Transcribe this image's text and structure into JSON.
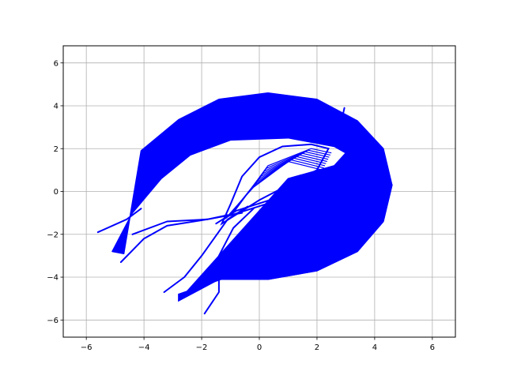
{
  "chart_data": {
    "type": "line",
    "title": "",
    "xlabel": "",
    "ylabel": "",
    "xlim": [
      -6.8,
      6.8
    ],
    "ylim": [
      -6.8,
      6.8
    ],
    "x_ticks": [
      -6,
      -4,
      -2,
      0,
      2,
      4,
      6
    ],
    "y_ticks": [
      -6,
      -4,
      -2,
      0,
      2,
      4,
      6
    ],
    "x_tick_labels": [
      "−6",
      "−4",
      "−2",
      "0",
      "2",
      "4",
      "6"
    ],
    "y_tick_labels": [
      "−6",
      "−4",
      "−2",
      "0",
      "2",
      "4",
      "6"
    ],
    "grid": true,
    "series_color": "#0000ff",
    "band_outer_boundary": [
      [
        -4.7,
        -2.9
      ],
      [
        -4.1,
        1.9
      ],
      [
        -2.8,
        3.35
      ],
      [
        -1.4,
        4.3
      ],
      [
        0.3,
        4.6
      ],
      [
        2.0,
        4.3
      ],
      [
        3.4,
        3.3
      ],
      [
        4.3,
        2.0
      ],
      [
        4.6,
        0.3
      ],
      [
        4.3,
        -1.4
      ],
      [
        3.4,
        -2.8
      ],
      [
        2.0,
        -3.7
      ],
      [
        0.3,
        -4.1
      ],
      [
        -1.4,
        -4.1
      ],
      [
        -2.8,
        -5.1
      ]
    ],
    "band_inner_boundary": [
      [
        -5.1,
        -2.8
      ],
      [
        -4.4,
        -1.0
      ],
      [
        -3.4,
        0.6
      ],
      [
        -2.4,
        1.7
      ],
      [
        -1.0,
        2.4
      ],
      [
        1.0,
        2.5
      ],
      [
        2.6,
        2.1
      ],
      [
        3.0,
        1.8
      ],
      [
        2.6,
        1.2
      ],
      [
        1.8,
        0.9
      ],
      [
        1.0,
        0.6
      ]
    ],
    "lower_arc_inner": [
      [
        1.9,
        0.2
      ],
      [
        3.2,
        0.1
      ],
      [
        2.8,
        -0.9
      ],
      [
        2.3,
        -1.0
      ],
      [
        1.9,
        -2.4
      ],
      [
        0.6,
        -3.3
      ],
      [
        -0.9,
        -3.9
      ],
      [
        -2.8,
        -4.8
      ]
    ],
    "inner_lobe": [
      [
        -1.3,
        -1.5
      ],
      [
        -1.0,
        -0.6
      ],
      [
        -0.6,
        0.7
      ],
      [
        0.0,
        1.6
      ],
      [
        0.8,
        2.1
      ],
      [
        1.8,
        2.2
      ],
      [
        2.4,
        2.0
      ],
      [
        2.0,
        1.0
      ],
      [
        1.0,
        0.3
      ],
      [
        0.0,
        -0.4
      ],
      [
        -1.3,
        -1.5
      ]
    ],
    "tail_lines": [
      [
        [
          -5.6,
          -1.9
        ],
        [
          -4.6,
          -1.3
        ],
        [
          -4.1,
          -0.8
        ]
      ],
      [
        [
          -4.8,
          -3.3
        ],
        [
          -4.0,
          -2.2
        ],
        [
          -3.2,
          -1.6
        ],
        [
          -1.8,
          -1.3
        ],
        [
          -1.1,
          -1.1
        ]
      ],
      [
        [
          -4.4,
          -2.0
        ],
        [
          -3.2,
          -1.4
        ],
        [
          -1.8,
          -1.3
        ],
        [
          -0.6,
          -1.0
        ]
      ],
      [
        [
          -3.3,
          -4.7
        ],
        [
          -2.6,
          -4.0
        ],
        [
          -2.0,
          -3.0
        ],
        [
          -1.1,
          -1.3
        ],
        [
          -0.4,
          -0.7
        ]
      ],
      [
        [
          -1.9,
          -5.7
        ],
        [
          -1.4,
          -4.7
        ],
        [
          -1.4,
          -3.0
        ],
        [
          -0.9,
          -1.7
        ],
        [
          -0.2,
          -0.8
        ]
      ],
      [
        [
          -1.5,
          -1.5
        ],
        [
          -0.8,
          -0.9
        ],
        [
          0.6,
          -0.3
        ],
        [
          1.6,
          0.0
        ]
      ],
      [
        [
          -1.2,
          -1.2
        ],
        [
          0.2,
          -0.6
        ],
        [
          1.4,
          -0.3
        ],
        [
          2.2,
          0.2
        ]
      ],
      [
        [
          2.6,
          3.2
        ],
        [
          2.9,
          3.6
        ],
        [
          2.95,
          3.9
        ]
      ]
    ]
  }
}
